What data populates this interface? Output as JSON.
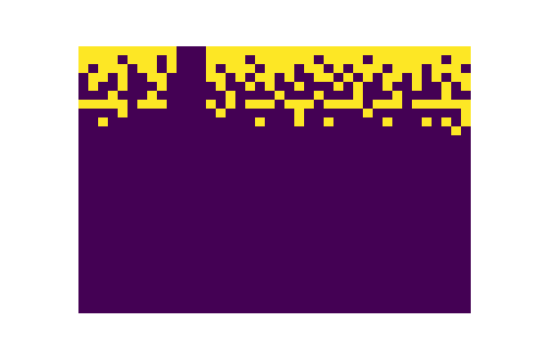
{
  "chart_data": {
    "type": "heatmap",
    "tick_labels": false,
    "zlim": [
      0,
      1
    ],
    "cells": [
      [
        1,
        1,
        1,
        1,
        1,
        1,
        1,
        1,
        1,
        1,
        0,
        0,
        0,
        1,
        1,
        1,
        1,
        1,
        1,
        1,
        1,
        1,
        1,
        1,
        1,
        1,
        1,
        1,
        1,
        1,
        1,
        1,
        1,
        1,
        1,
        1,
        1,
        1,
        1,
        1
      ],
      [
        1,
        1,
        1,
        1,
        0,
        1,
        1,
        1,
        0,
        1,
        0,
        0,
        0,
        1,
        1,
        1,
        1,
        0,
        1,
        1,
        1,
        1,
        1,
        1,
        0,
        1,
        1,
        1,
        1,
        0,
        1,
        1,
        1,
        1,
        1,
        1,
        1,
        0,
        1,
        1
      ],
      [
        1,
        0,
        1,
        1,
        1,
        0,
        1,
        1,
        0,
        1,
        0,
        0,
        0,
        1,
        0,
        1,
        1,
        1,
        0,
        1,
        1,
        1,
        0,
        1,
        1,
        0,
        1,
        0,
        1,
        1,
        1,
        0,
        1,
        1,
        1,
        0,
        1,
        1,
        1,
        0
      ],
      [
        0,
        1,
        1,
        0,
        1,
        0,
        0,
        1,
        1,
        0,
        0,
        0,
        0,
        1,
        1,
        0,
        1,
        0,
        1,
        1,
        0,
        1,
        0,
        0,
        1,
        1,
        0,
        1,
        0,
        1,
        0,
        1,
        1,
        0,
        1,
        0,
        1,
        0,
        1,
        1
      ],
      [
        0,
        1,
        0,
        0,
        1,
        0,
        0,
        0,
        1,
        0,
        0,
        0,
        0,
        0,
        1,
        0,
        0,
        1,
        0,
        1,
        0,
        0,
        1,
        0,
        0,
        0,
        1,
        0,
        1,
        0,
        0,
        1,
        0,
        0,
        1,
        0,
        0,
        1,
        0,
        1
      ],
      [
        0,
        0,
        0,
        1,
        0,
        0,
        0,
        1,
        0,
        0,
        0,
        0,
        0,
        0,
        0,
        1,
        0,
        0,
        0,
        0,
        1,
        0,
        0,
        0,
        1,
        0,
        0,
        0,
        1,
        0,
        0,
        0,
        1,
        0,
        0,
        0,
        0,
        1,
        0,
        0
      ],
      [
        1,
        1,
        1,
        1,
        1,
        0,
        1,
        1,
        1,
        0,
        0,
        0,
        0,
        1,
        0,
        1,
        0,
        1,
        1,
        1,
        0,
        1,
        1,
        1,
        0,
        1,
        1,
        1,
        1,
        0,
        1,
        1,
        1,
        0,
        1,
        1,
        1,
        1,
        1,
        1
      ],
      [
        0,
        0,
        0,
        0,
        1,
        0,
        0,
        0,
        0,
        0,
        0,
        0,
        0,
        0,
        1,
        0,
        0,
        0,
        0,
        0,
        0,
        0,
        1,
        0,
        0,
        0,
        0,
        0,
        0,
        1,
        0,
        0,
        0,
        0,
        0,
        0,
        0,
        0,
        0,
        1
      ],
      [
        0,
        0,
        1,
        0,
        0,
        0,
        0,
        0,
        0,
        0,
        0,
        0,
        0,
        0,
        0,
        0,
        0,
        0,
        1,
        0,
        0,
        0,
        1,
        0,
        0,
        1,
        0,
        0,
        0,
        0,
        0,
        1,
        0,
        0,
        0,
        1,
        0,
        1,
        0,
        1
      ],
      [
        0,
        0,
        0,
        0,
        0,
        0,
        0,
        0,
        0,
        0,
        0,
        0,
        0,
        0,
        0,
        0,
        0,
        0,
        0,
        0,
        0,
        0,
        0,
        0,
        0,
        0,
        0,
        0,
        0,
        0,
        0,
        0,
        0,
        0,
        0,
        0,
        0,
        0,
        1,
        0
      ],
      [
        0,
        0,
        0,
        0,
        0,
        0,
        0,
        0,
        0,
        0,
        0,
        0,
        0,
        0,
        0,
        0,
        0,
        0,
        0,
        0,
        0,
        0,
        0,
        0,
        0,
        0,
        0,
        0,
        0,
        0,
        0,
        0,
        0,
        0,
        0,
        0,
        0,
        0,
        0,
        0
      ],
      [
        0,
        0,
        0,
        0,
        0,
        0,
        0,
        0,
        0,
        0,
        0,
        0,
        0,
        0,
        0,
        0,
        0,
        0,
        0,
        0,
        0,
        0,
        0,
        0,
        0,
        0,
        0,
        0,
        0,
        0,
        0,
        0,
        0,
        0,
        0,
        0,
        0,
        0,
        0,
        0
      ],
      [
        0,
        0,
        0,
        0,
        0,
        0,
        0,
        0,
        0,
        0,
        0,
        0,
        0,
        0,
        0,
        0,
        0,
        0,
        0,
        0,
        0,
        0,
        0,
        0,
        0,
        0,
        0,
        0,
        0,
        0,
        0,
        0,
        0,
        0,
        0,
        0,
        0,
        0,
        0,
        0
      ],
      [
        0,
        0,
        0,
        0,
        0,
        0,
        0,
        0,
        0,
        0,
        0,
        0,
        0,
        0,
        0,
        0,
        0,
        0,
        0,
        0,
        0,
        0,
        0,
        0,
        0,
        0,
        0,
        0,
        0,
        0,
        0,
        0,
        0,
        0,
        0,
        0,
        0,
        0,
        0,
        0
      ],
      [
        0,
        0,
        0,
        0,
        0,
        0,
        0,
        0,
        0,
        0,
        0,
        0,
        0,
        0,
        0,
        0,
        0,
        0,
        0,
        0,
        0,
        0,
        0,
        0,
        0,
        0,
        0,
        0,
        0,
        0,
        0,
        0,
        0,
        0,
        0,
        0,
        0,
        0,
        0,
        0
      ],
      [
        0,
        0,
        0,
        0,
        0,
        0,
        0,
        0,
        0,
        0,
        0,
        0,
        0,
        0,
        0,
        0,
        0,
        0,
        0,
        0,
        0,
        0,
        0,
        0,
        0,
        0,
        0,
        0,
        0,
        0,
        0,
        0,
        0,
        0,
        0,
        0,
        0,
        0,
        0,
        0
      ],
      [
        0,
        0,
        0,
        0,
        0,
        0,
        0,
        0,
        0,
        0,
        0,
        0,
        0,
        0,
        0,
        0,
        0,
        0,
        0,
        0,
        0,
        0,
        0,
        0,
        0,
        0,
        0,
        0,
        0,
        0,
        0,
        0,
        0,
        0,
        0,
        0,
        0,
        0,
        0,
        0
      ],
      [
        0,
        0,
        0,
        0,
        0,
        0,
        0,
        0,
        0,
        0,
        0,
        0,
        0,
        0,
        0,
        0,
        0,
        0,
        0,
        0,
        0,
        0,
        0,
        0,
        0,
        0,
        0,
        0,
        0,
        0,
        0,
        0,
        0,
        0,
        0,
        0,
        0,
        0,
        0,
        0
      ],
      [
        0,
        0,
        0,
        0,
        0,
        0,
        0,
        0,
        0,
        0,
        0,
        0,
        0,
        0,
        0,
        0,
        0,
        0,
        0,
        0,
        0,
        0,
        0,
        0,
        0,
        0,
        0,
        0,
        0,
        0,
        0,
        0,
        0,
        0,
        0,
        0,
        0,
        0,
        0,
        0
      ],
      [
        0,
        0,
        0,
        0,
        0,
        0,
        0,
        0,
        0,
        0,
        0,
        0,
        0,
        0,
        0,
        0,
        0,
        0,
        0,
        0,
        0,
        0,
        0,
        0,
        0,
        0,
        0,
        0,
        0,
        0,
        0,
        0,
        0,
        0,
        0,
        0,
        0,
        0,
        0,
        0
      ],
      [
        0,
        0,
        0,
        0,
        0,
        0,
        0,
        0,
        0,
        0,
        0,
        0,
        0,
        0,
        0,
        0,
        0,
        0,
        0,
        0,
        0,
        0,
        0,
        0,
        0,
        0,
        0,
        0,
        0,
        0,
        0,
        0,
        0,
        0,
        0,
        0,
        0,
        0,
        0,
        0
      ],
      [
        0,
        0,
        0,
        0,
        0,
        0,
        0,
        0,
        0,
        0,
        0,
        0,
        0,
        0,
        0,
        0,
        0,
        0,
        0,
        0,
        0,
        0,
        0,
        0,
        0,
        0,
        0,
        0,
        0,
        0,
        0,
        0,
        0,
        0,
        0,
        0,
        0,
        0,
        0,
        0
      ],
      [
        0,
        0,
        0,
        0,
        0,
        0,
        0,
        0,
        0,
        0,
        0,
        0,
        0,
        0,
        0,
        0,
        0,
        0,
        0,
        0,
        0,
        0,
        0,
        0,
        0,
        0,
        0,
        0,
        0,
        0,
        0,
        0,
        0,
        0,
        0,
        0,
        0,
        0,
        0,
        0
      ],
      [
        0,
        0,
        0,
        0,
        0,
        0,
        0,
        0,
        0,
        0,
        0,
        0,
        0,
        0,
        0,
        0,
        0,
        0,
        0,
        0,
        0,
        0,
        0,
        0,
        0,
        0,
        0,
        0,
        0,
        0,
        0,
        0,
        0,
        0,
        0,
        0,
        0,
        0,
        0,
        0
      ],
      [
        0,
        0,
        0,
        0,
        0,
        0,
        0,
        0,
        0,
        0,
        0,
        0,
        0,
        0,
        0,
        0,
        0,
        0,
        0,
        0,
        0,
        0,
        0,
        0,
        0,
        0,
        0,
        0,
        0,
        0,
        0,
        0,
        0,
        0,
        0,
        0,
        0,
        0,
        0,
        0
      ],
      [
        0,
        0,
        0,
        0,
        0,
        0,
        0,
        0,
        0,
        0,
        0,
        0,
        0,
        0,
        0,
        0,
        0,
        0,
        0,
        0,
        0,
        0,
        0,
        0,
        0,
        0,
        0,
        0,
        0,
        0,
        0,
        0,
        0,
        0,
        0,
        0,
        0,
        0,
        0,
        0
      ],
      [
        0,
        0,
        0,
        0,
        0,
        0,
        0,
        0,
        0,
        0,
        0,
        0,
        0,
        0,
        0,
        0,
        0,
        0,
        0,
        0,
        0,
        0,
        0,
        0,
        0,
        0,
        0,
        0,
        0,
        0,
        0,
        0,
        0,
        0,
        0,
        0,
        0,
        0,
        0,
        0
      ],
      [
        0,
        0,
        0,
        0,
        0,
        0,
        0,
        0,
        0,
        0,
        0,
        0,
        0,
        0,
        0,
        0,
        0,
        0,
        0,
        0,
        0,
        0,
        0,
        0,
        0,
        0,
        0,
        0,
        0,
        0,
        0,
        0,
        0,
        0,
        0,
        0,
        0,
        0,
        0,
        0
      ],
      [
        0,
        0,
        0,
        0,
        0,
        0,
        0,
        0,
        0,
        0,
        0,
        0,
        0,
        0,
        0,
        0,
        0,
        0,
        0,
        0,
        0,
        0,
        0,
        0,
        0,
        0,
        0,
        0,
        0,
        0,
        0,
        0,
        0,
        0,
        0,
        0,
        0,
        0,
        0,
        0
      ],
      [
        0,
        0,
        0,
        0,
        0,
        0,
        0,
        0,
        0,
        0,
        0,
        0,
        0,
        0,
        0,
        0,
        0,
        0,
        0,
        0,
        0,
        0,
        0,
        0,
        0,
        0,
        0,
        0,
        0,
        0,
        0,
        0,
        0,
        0,
        0,
        0,
        0,
        0,
        0,
        0
      ]
    ]
  }
}
